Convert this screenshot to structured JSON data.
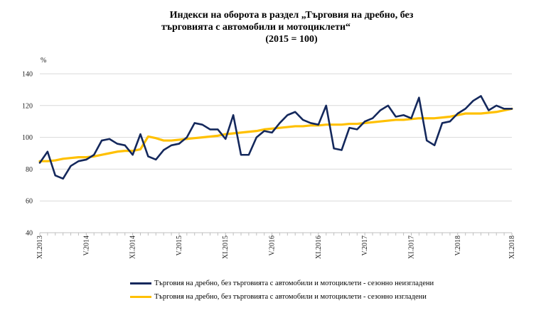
{
  "title": {
    "line1": "Индекси на оборота в раздел „Търговия на дребно, без",
    "line2": "търговията с автомобили и мотоциклети“",
    "line3": "(2015 = 100)"
  },
  "chart_data": {
    "type": "line",
    "title": "Индекси на оборота в раздел „Търговия на дребно, без търговията с автомобили и мотоциклети“ (2015 = 100)",
    "ylabel": "%",
    "ylim": [
      40,
      140
    ],
    "yticks": [
      40,
      60,
      80,
      100,
      120,
      140
    ],
    "x_count": 62,
    "x_tick_labels": [
      {
        "index": 0,
        "label": "XI.2013"
      },
      {
        "index": 6,
        "label": "V.2014"
      },
      {
        "index": 12,
        "label": "XI.2014"
      },
      {
        "index": 18,
        "label": "V.2015"
      },
      {
        "index": 24,
        "label": "XI.2015"
      },
      {
        "index": 30,
        "label": "V.2016"
      },
      {
        "index": 36,
        "label": "XI.2016"
      },
      {
        "index": 42,
        "label": "V.2017"
      },
      {
        "index": 48,
        "label": "XI.2017"
      },
      {
        "index": 54,
        "label": "V.2018"
      },
      {
        "index": 61,
        "label": "XI.2018"
      }
    ],
    "series": [
      {
        "name": "Търговия на дребно, без търговията с автомобили и мотоциклети - сезонно неизгладени",
        "color": "#14285c",
        "values": [
          84,
          91,
          76,
          74,
          82,
          85,
          86,
          89,
          98,
          99,
          96,
          95,
          89,
          102,
          88,
          86,
          92,
          95,
          96,
          100,
          109,
          108,
          105,
          105,
          99,
          114,
          89,
          89,
          100,
          104,
          103,
          109,
          114,
          116,
          111,
          109,
          108,
          120,
          93,
          92,
          106,
          105,
          110,
          112,
          117,
          120,
          113,
          114,
          112,
          125,
          98,
          95,
          109,
          110,
          115,
          118,
          123,
          126,
          117,
          120,
          118,
          118
        ]
      },
      {
        "name": "Търговия на дребно, без търговията с автомобили и мотоциклети - сезонно изгладени",
        "color": "#ffc000",
        "values": [
          85,
          85,
          85.5,
          86.5,
          87,
          87.5,
          87.5,
          88,
          89,
          90,
          91,
          91.5,
          91.5,
          92.5,
          100.5,
          99.5,
          98,
          98,
          98.5,
          99,
          99.5,
          100,
          100.5,
          101,
          102,
          102.5,
          103,
          103.5,
          104,
          105,
          105.5,
          106,
          106.5,
          107,
          107,
          107.5,
          107.5,
          108,
          108,
          108,
          108.5,
          108.5,
          109,
          109.5,
          110,
          110.5,
          111,
          111,
          111.5,
          112,
          112,
          112,
          112.5,
          113,
          114,
          115,
          115,
          115,
          115.5,
          116,
          117,
          118
        ]
      }
    ]
  },
  "legend": {
    "items": [
      {
        "label": "Търговия на дребно, без търговията с автомобили и мотоциклети - сезонно неизгладени",
        "color": "#14285c"
      },
      {
        "label": "Търговия на дребно, без търговията с автомобили и мотоциклети - сезонно изгладени",
        "color": "#ffc000"
      }
    ]
  }
}
